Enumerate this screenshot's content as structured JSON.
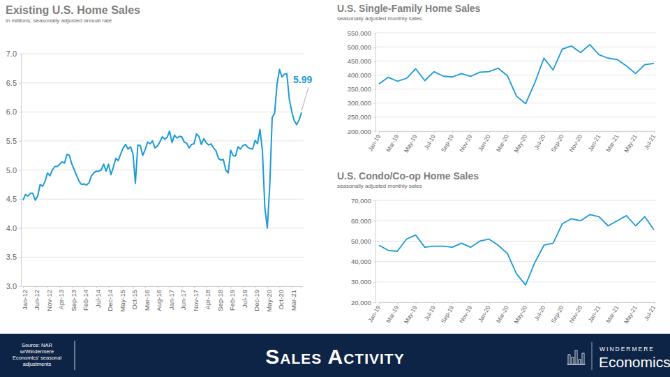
{
  "chart_data": [
    {
      "type": "line",
      "title": "Existing U.S. Home Sales",
      "subtitle": "in millions; seasonally adjusted annual rate",
      "categories": [
        "Jan-12",
        null,
        null,
        null,
        null,
        "Jun-12",
        null,
        null,
        null,
        null,
        "Nov-12",
        null,
        null,
        null,
        null,
        "Apr-13",
        null,
        null,
        null,
        null,
        "Sep-13",
        null,
        null,
        null,
        null,
        "Feb-14",
        null,
        null,
        null,
        null,
        "Jul-14",
        null,
        null,
        null,
        null,
        "Dec-14",
        null,
        null,
        null,
        null,
        "May-15",
        null,
        null,
        null,
        null,
        "Oct-15",
        null,
        null,
        null,
        null,
        "Mar-16",
        null,
        null,
        null,
        null,
        "Aug-16",
        null,
        null,
        null,
        null,
        "Jan-17",
        null,
        null,
        null,
        null,
        "Jun-17",
        null,
        null,
        null,
        null,
        "Nov-17",
        null,
        null,
        null,
        null,
        "Apr-18",
        null,
        null,
        null,
        null,
        "Sep-18",
        null,
        null,
        null,
        null,
        "Feb-19",
        null,
        null,
        null,
        null,
        "Jul-19",
        null,
        null,
        null,
        null,
        "Dec-19",
        null,
        null,
        null,
        null,
        "May-20",
        null,
        null,
        null,
        null,
        "Oct-20",
        null,
        null,
        null,
        null,
        "Mar-21",
        null,
        null,
        null,
        null
      ],
      "values": [
        4.48,
        4.58,
        4.55,
        4.6,
        4.6,
        4.48,
        4.55,
        4.75,
        4.72,
        4.8,
        4.95,
        4.9,
        5.0,
        5.06,
        5.06,
        5.1,
        5.14,
        5.12,
        5.27,
        5.25,
        5.1,
        5.0,
        4.9,
        4.8,
        4.75,
        4.76,
        4.74,
        4.78,
        4.9,
        4.95,
        4.98,
        4.98,
        5.0,
        5.1,
        4.98,
        5.1,
        4.92,
        5.05,
        5.2,
        5.16,
        5.28,
        5.38,
        5.44,
        5.36,
        5.4,
        5.28,
        4.77,
        5.43,
        5.42,
        5.25,
        5.35,
        5.48,
        5.45,
        5.5,
        5.38,
        5.41,
        5.48,
        5.57,
        5.53,
        5.56,
        5.67,
        5.47,
        5.6,
        5.55,
        5.58,
        5.57,
        5.48,
        5.46,
        5.38,
        5.44,
        5.45,
        5.62,
        5.58,
        5.44,
        5.54,
        5.47,
        5.43,
        5.45,
        5.38,
        5.33,
        5.2,
        5.17,
        5.18,
        5.0,
        4.95,
        5.34,
        5.25,
        5.24,
        5.4,
        5.36,
        5.42,
        5.44,
        5.39,
        5.37,
        5.36,
        5.51,
        5.45,
        5.7,
        5.33,
        4.35,
        4.0,
        4.73,
        5.9,
        5.98,
        6.48,
        6.73,
        6.6,
        6.65,
        6.66,
        6.22,
        6.01,
        5.85,
        5.78,
        5.86,
        5.99
      ],
      "color": "#1b9ad6",
      "ylim": [
        3,
        7
      ],
      "yticks": [
        {
          "value": 3,
          "label": "3.0"
        },
        3.5,
        {
          "value": 4,
          "label": "4.0"
        },
        4.5,
        {
          "value": 5,
          "label": "5.0"
        },
        5.5,
        {
          "value": 6,
          "label": "6.0"
        },
        6.5,
        {
          "value": 7,
          "label": "7.0"
        }
      ],
      "grid": true,
      "annotation": "5.99"
    },
    {
      "type": "line",
      "title": "U.S. Single-Family Home Sales",
      "subtitle": "seasonally adjusted monthly sales",
      "categories": [
        "Jan-19",
        null,
        "Mar-19",
        null,
        "May-19",
        null,
        "Jul-19",
        null,
        "Sep-19",
        null,
        "Nov-19",
        null,
        "Jan-20",
        null,
        "Mar-20",
        null,
        "May-20",
        null,
        "Jul-20",
        null,
        "Sep-20",
        null,
        "Nov-20",
        null,
        "Jan-21",
        null,
        "Mar-21",
        null,
        "May-21",
        null,
        "Jul-21"
      ],
      "values": [
        368000,
        392000,
        378000,
        388000,
        422000,
        380000,
        412000,
        396000,
        393000,
        405000,
        395000,
        410000,
        412000,
        424000,
        398000,
        325000,
        298000,
        372000,
        460000,
        418000,
        492000,
        503000,
        480000,
        508000,
        472000,
        460000,
        455000,
        432000,
        405000,
        437000,
        441000
      ],
      "color": "#1b9ad6",
      "ylim": [
        200000,
        550000
      ],
      "yticks": [
        {
          "value": 200000,
          "label": "200,000"
        },
        {
          "value": 250000,
          "label": "250,000"
        },
        {
          "value": 300000,
          "label": "300,000"
        },
        {
          "value": 350000,
          "label": "350,000"
        },
        {
          "value": 400000,
          "label": "400,000"
        },
        {
          "value": 450000,
          "label": "450,000"
        },
        {
          "value": 500000,
          "label": "500,000"
        },
        {
          "value": 550000,
          "label": "550,000"
        }
      ],
      "grid": true
    },
    {
      "type": "line",
      "title": "U.S. Condo/Co-op Home Sales",
      "subtitle": "seasonally adjusted monthly sales",
      "categories": [
        "Jan-19",
        null,
        "Mar-19",
        null,
        "May-19",
        null,
        "Jul-19",
        null,
        "Sep-19",
        null,
        "Nov-19",
        null,
        "Jan-20",
        null,
        "Mar-20",
        null,
        "May-20",
        null,
        "Jul-20",
        null,
        "Sep-20",
        null,
        "Nov-20",
        null,
        "Jan-21",
        null,
        "Mar-21",
        null,
        "May-21",
        null,
        "Jul-21"
      ],
      "values": [
        48000,
        45500,
        45000,
        51000,
        53000,
        47000,
        47500,
        47500,
        47000,
        49000,
        47000,
        50000,
        51000,
        48000,
        44000,
        34000,
        28500,
        39500,
        48000,
        49000,
        58500,
        61000,
        60000,
        63000,
        62000,
        57500,
        60000,
        62500,
        57500,
        62000,
        55500
      ],
      "color": "#1b9ad6",
      "ylim": [
        20000,
        70000
      ],
      "yticks": [
        {
          "value": 20000,
          "label": "20,000"
        },
        {
          "value": 30000,
          "label": "30,000"
        },
        {
          "value": 40000,
          "label": "40,000"
        },
        {
          "value": 50000,
          "label": "50,000"
        },
        {
          "value": 60000,
          "label": "60,000"
        },
        {
          "value": 70000,
          "label": "70,000"
        }
      ],
      "grid": true
    }
  ],
  "footer": {
    "source": [
      "Source: NAR",
      "w/Windermere",
      "Economics' seasonal",
      "adjustments"
    ],
    "title": "Sales Activity",
    "logo": [
      "WINDERMERE",
      "Economics"
    ]
  }
}
